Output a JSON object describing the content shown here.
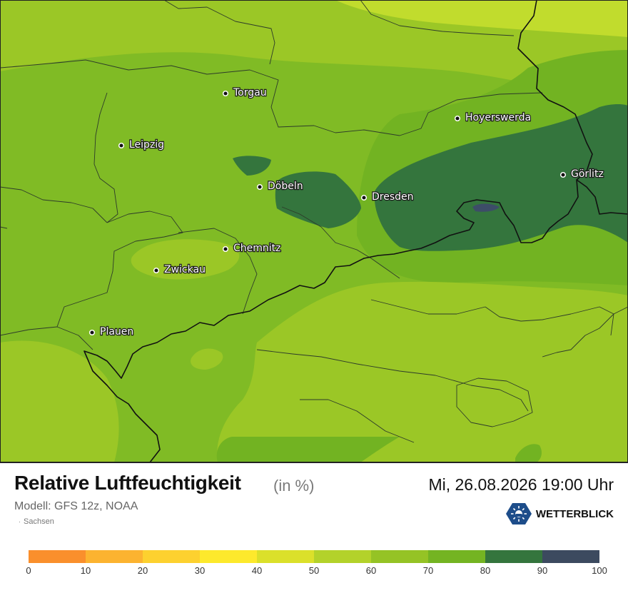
{
  "map": {
    "cities": [
      {
        "name": "Torgau"
      },
      {
        "name": "Leipzig"
      },
      {
        "name": "Döbeln"
      },
      {
        "name": "Dresden"
      },
      {
        "name": "Hoyerswerda"
      },
      {
        "name": "Görlitz"
      },
      {
        "name": "Chemnitz"
      },
      {
        "name": "Zwickau"
      },
      {
        "name": "Plauen"
      }
    ]
  },
  "footer": {
    "title": "Relative Luftfeuchtigkeit",
    "unit": "(in %)",
    "datetime": "Mi, 26.08.2026 19:00 Uhr",
    "model": "Modell: GFS 12z, NOAA",
    "region": "Sachsen",
    "brand": "WETTERBLICK"
  },
  "legend": {
    "ticks": [
      "0",
      "10",
      "20",
      "30",
      "40",
      "50",
      "60",
      "70",
      "80",
      "90",
      "100"
    ],
    "colors": [
      "#fa8f2c",
      "#fcb330",
      "#fdd12f",
      "#fde92c",
      "#dbe02a",
      "#b3d22a",
      "#95c325",
      "#74b422",
      "#34753d",
      "#3c4a5f"
    ]
  },
  "colors": {
    "humidity_40_50": "#c1dc2d",
    "humidity_50_60": "#9bc726",
    "humidity_60_70": "#80bb25",
    "humidity_70_80": "#72b322",
    "humidity_80_90": "#34753d",
    "humidity_90_100": "#3d4d68"
  }
}
